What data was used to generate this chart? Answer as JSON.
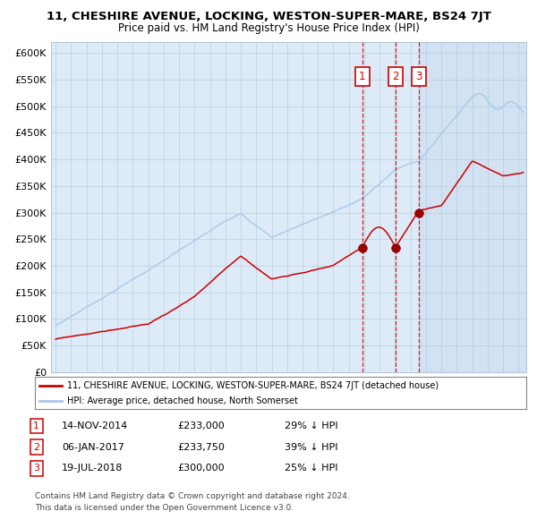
{
  "title": "11, CHESHIRE AVENUE, LOCKING, WESTON-SUPER-MARE, BS24 7JT",
  "subtitle": "Price paid vs. HM Land Registry's House Price Index (HPI)",
  "hpi_color": "#a8c8e8",
  "price_color": "#cc0000",
  "bg_color": "#ddeaf8",
  "ylim": [
    0,
    620000
  ],
  "yticks": [
    0,
    50000,
    100000,
    150000,
    200000,
    250000,
    300000,
    350000,
    400000,
    450000,
    500000,
    550000,
    600000
  ],
  "ytick_labels": [
    "£0",
    "£50K",
    "£100K",
    "£150K",
    "£200K",
    "£250K",
    "£300K",
    "£350K",
    "£400K",
    "£450K",
    "£500K",
    "£550K",
    "£600K"
  ],
  "sale_dates": [
    "14-NOV-2014",
    "06-JAN-2017",
    "19-JUL-2018"
  ],
  "sale_prices": [
    233000,
    233750,
    300000
  ],
  "sale_years": [
    2014.87,
    2017.02,
    2018.55
  ],
  "sale_pct": [
    "29%",
    "39%",
    "25%"
  ],
  "legend_label_price": "11, CHESHIRE AVENUE, LOCKING, WESTON-SUPER-MARE, BS24 7JT (detached house)",
  "legend_label_hpi": "HPI: Average price, detached house, North Somerset",
  "footnote1": "Contains HM Land Registry data © Crown copyright and database right 2024.",
  "footnote2": "This data is licensed under the Open Government Licence v3.0.",
  "xlim_left": 1994.7,
  "xlim_right": 2025.5
}
